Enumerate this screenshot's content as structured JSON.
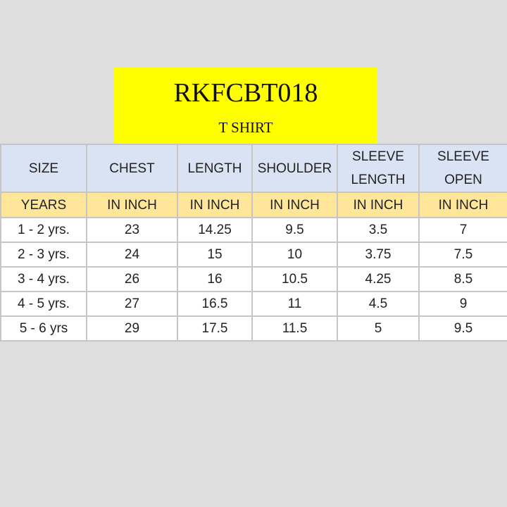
{
  "product": {
    "code": "RKFCBT018",
    "type": "T SHIRT"
  },
  "table": {
    "headers": [
      [
        "SIZE"
      ],
      [
        "CHEST"
      ],
      [
        "LENGTH"
      ],
      [
        "SHOULDER"
      ],
      [
        "SLEEVE",
        "LENGTH"
      ],
      [
        "SLEEVE",
        "OPEN"
      ]
    ],
    "units": [
      "YEARS",
      "IN INCH",
      "IN INCH",
      "IN INCH",
      "IN INCH",
      "IN INCH"
    ],
    "rows": [
      [
        "1 - 2 yrs.",
        "23",
        "14.25",
        "9.5",
        "3.5",
        "7"
      ],
      [
        "2 - 3 yrs.",
        "24",
        "15",
        "10",
        "3.75",
        "7.5"
      ],
      [
        "3 - 4 yrs.",
        "26",
        "16",
        "10.5",
        "4.25",
        "8.5"
      ],
      [
        "4 - 5 yrs.",
        "27",
        "16.5",
        "11",
        "4.5",
        "9"
      ],
      [
        "5 - 6 yrs",
        "29",
        "17.5",
        "11.5",
        "5",
        "9.5"
      ]
    ]
  },
  "colors": {
    "title_background": "#ffff00",
    "header_background": "#dae3f3",
    "unit_background": "#ffe699",
    "page_background": "#dedede"
  }
}
